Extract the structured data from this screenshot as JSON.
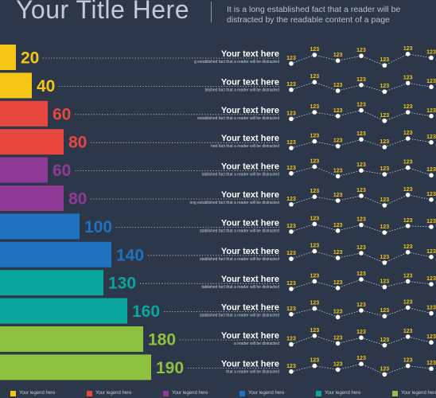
{
  "header": {
    "title": "Your Title Here",
    "subtitle": "It is a long established fact that a reader will be distracted by the readable content of a page"
  },
  "colors": {
    "background": "#2c3849",
    "yellow": "#f5c516",
    "red": "#e8473f",
    "purple": "#8e3a96",
    "blue": "#1f72c0",
    "teal": "#0aa59c",
    "green": "#8dc13f",
    "line": "#c9d2db"
  },
  "chart_data": {
    "type": "bar",
    "orientation": "horizontal",
    "values": [
      20,
      40,
      60,
      80,
      60,
      80,
      100,
      140,
      130,
      160,
      180,
      190
    ],
    "bar_colors": [
      "yellow",
      "yellow",
      "red",
      "red",
      "purple",
      "purple",
      "blue",
      "blue",
      "teal",
      "teal",
      "green",
      "green"
    ],
    "xlim": [
      0,
      190
    ],
    "row_titles": [
      "Your text here",
      "Your text here",
      "Your text here",
      "Your text here",
      "Your text here",
      "Your text here",
      "Your text here",
      "Your text here",
      "Your text here",
      "Your text here",
      "Your text here",
      "Your text here"
    ],
    "row_subtitles": [
      "g established fact that a reader will be distracted",
      "blished fact that a reader will be distracted",
      "established fact that a reader will be distracted",
      "hed fact that a reader will be distracted",
      "tablished fact that a reader will be distracted",
      "ong established fact that a reader will be distracted",
      "stablished fact that a reader will be distracted",
      "stablished fact that a reader will be distracted",
      "tablished fact that a reader will be distracted",
      "stablished fact that a reader will be distracted",
      "a reader will be distracted",
      "that a reader will be distracted"
    ],
    "sparkline_point_label": "123",
    "sparkline_rows": [
      [
        0.3,
        0.75,
        0.45,
        0.7,
        0.2,
        0.8,
        0.6
      ],
      [
        0.4,
        0.8,
        0.35,
        0.65,
        0.3,
        0.75,
        0.55
      ],
      [
        0.35,
        0.7,
        0.5,
        0.8,
        0.25,
        0.7,
        0.5
      ],
      [
        0.3,
        0.65,
        0.4,
        0.75,
        0.35,
        0.8,
        0.6
      ],
      [
        0.45,
        0.8,
        0.3,
        0.6,
        0.4,
        0.75,
        0.35
      ],
      [
        0.3,
        0.7,
        0.5,
        0.75,
        0.25,
        0.8,
        0.55
      ],
      [
        0.35,
        0.75,
        0.4,
        0.7,
        0.3,
        0.65,
        0.6
      ],
      [
        0.4,
        0.8,
        0.45,
        0.7,
        0.2,
        0.75,
        0.5
      ],
      [
        0.3,
        0.7,
        0.35,
        0.8,
        0.4,
        0.7,
        0.55
      ],
      [
        0.45,
        0.75,
        0.3,
        0.65,
        0.35,
        0.8,
        0.5
      ],
      [
        0.35,
        0.8,
        0.4,
        0.7,
        0.3,
        0.75,
        0.45
      ],
      [
        0.4,
        0.7,
        0.5,
        0.8,
        0.25,
        0.7,
        0.55
      ]
    ]
  },
  "legend": [
    {
      "label": "Your legend here",
      "color": "#f5c516"
    },
    {
      "label": "Your legend here",
      "color": "#e8473f"
    },
    {
      "label": "Your legend here",
      "color": "#8e3a96"
    },
    {
      "label": "Your legend here",
      "color": "#1f72c0"
    },
    {
      "label": "Your legend here",
      "color": "#0aa59c"
    },
    {
      "label": "Your legend here",
      "color": "#8dc13f"
    }
  ]
}
